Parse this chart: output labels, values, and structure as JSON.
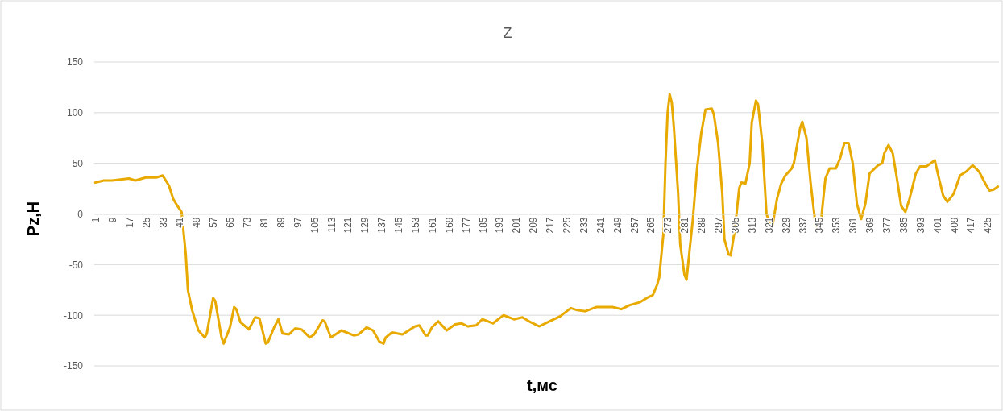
{
  "chart_data": {
    "type": "line",
    "title": "Z",
    "xlabel": "t,мс",
    "ylabel": "Pz,H",
    "xlim": [
      0.5,
      430.5
    ],
    "xticks": [
      1,
      9,
      17,
      25,
      33,
      41,
      49,
      57,
      65,
      73,
      81,
      89,
      97,
      105,
      113,
      121,
      129,
      137,
      145,
      153,
      161,
      169,
      177,
      185,
      193,
      201,
      209,
      217,
      225,
      233,
      241,
      249,
      257,
      265,
      273,
      281,
      289,
      297,
      305,
      313,
      321,
      329,
      337,
      345,
      353,
      361,
      369,
      377,
      385,
      393,
      401,
      409,
      417,
      425
    ],
    "ylim": [
      -150,
      150
    ],
    "yticks": [
      -150,
      -100,
      -50,
      0,
      50,
      100,
      150
    ],
    "grid": "y",
    "marker": "none",
    "line_style": "solid",
    "series": [
      {
        "color": "#e8a900",
        "x": [
          1,
          5,
          9,
          13,
          17,
          20,
          25,
          30,
          33,
          36,
          38,
          40,
          42,
          44,
          45,
          47,
          50,
          53,
          54,
          57,
          58,
          61,
          62,
          65,
          67,
          68,
          70,
          74,
          77,
          79,
          82,
          83,
          86,
          88,
          90,
          93,
          96,
          99,
          103,
          105,
          109,
          110,
          113,
          118,
          124,
          126,
          130,
          133,
          136,
          138,
          139,
          142,
          147,
          153,
          155,
          158,
          159,
          161,
          164,
          168,
          172,
          175,
          178,
          182,
          185,
          190,
          195,
          200,
          204,
          208,
          212,
          216,
          222,
          227,
          230,
          234,
          239,
          247,
          251,
          255,
          260,
          264,
          266,
          268,
          269,
          271,
          272,
          273,
          274,
          275,
          276,
          278,
          279,
          281,
          282,
          283,
          285,
          287,
          289,
          291,
          294,
          295,
          297,
          299,
          300,
          302,
          303,
          305,
          307,
          308,
          310,
          312,
          313,
          315,
          316,
          318,
          320,
          322,
          323,
          325,
          327,
          329,
          332,
          333,
          336,
          337,
          339,
          341,
          343,
          344,
          346,
          348,
          350,
          353,
          355,
          357,
          359,
          361,
          363,
          365,
          367,
          369,
          373,
          375,
          376,
          378,
          380,
          382,
          384,
          386,
          388,
          391,
          393,
          396,
          398,
          400,
          402,
          404,
          406,
          409,
          412,
          415,
          418,
          421,
          424,
          426,
          428,
          430
        ],
        "values": [
          31,
          33,
          33,
          34,
          35,
          33,
          36,
          36,
          38,
          28,
          15,
          8,
          2,
          -40,
          -75,
          -95,
          -115,
          -122,
          -118,
          -83,
          -86,
          -122,
          -128,
          -112,
          -92,
          -94,
          -107,
          -114,
          -102,
          -103,
          -128,
          -127,
          -112,
          -104,
          -118,
          -119,
          -113,
          -114,
          -122,
          -119,
          -105,
          -106,
          -122,
          -115,
          -120,
          -119,
          -112,
          -115,
          -126,
          -128,
          -122,
          -117,
          -119,
          -111,
          -110,
          -120,
          -120,
          -112,
          -106,
          -115,
          -109,
          -108,
          -111,
          -110,
          -104,
          -108,
          -100,
          -104,
          -102,
          -107,
          -111,
          -107,
          -101,
          -93,
          -95,
          -96,
          -92,
          -92,
          -94,
          -90,
          -87,
          -82,
          -80,
          -70,
          -63,
          -20,
          50,
          100,
          118,
          110,
          85,
          20,
          -30,
          -60,
          -65,
          -45,
          -5,
          45,
          80,
          103,
          104,
          98,
          70,
          20,
          -25,
          -40,
          -41,
          -15,
          25,
          31,
          30,
          50,
          90,
          112,
          108,
          70,
          0,
          -12,
          -10,
          15,
          30,
          38,
          45,
          50,
          85,
          91,
          75,
          30,
          -5,
          -12,
          -5,
          35,
          45,
          45,
          55,
          70,
          70,
          50,
          10,
          -5,
          10,
          40,
          48,
          50,
          60,
          68,
          60,
          35,
          8,
          2,
          15,
          40,
          47,
          47,
          50,
          53,
          35,
          18,
          12,
          20,
          38,
          42,
          48,
          42,
          30,
          23,
          24,
          27
        ]
      }
    ]
  }
}
